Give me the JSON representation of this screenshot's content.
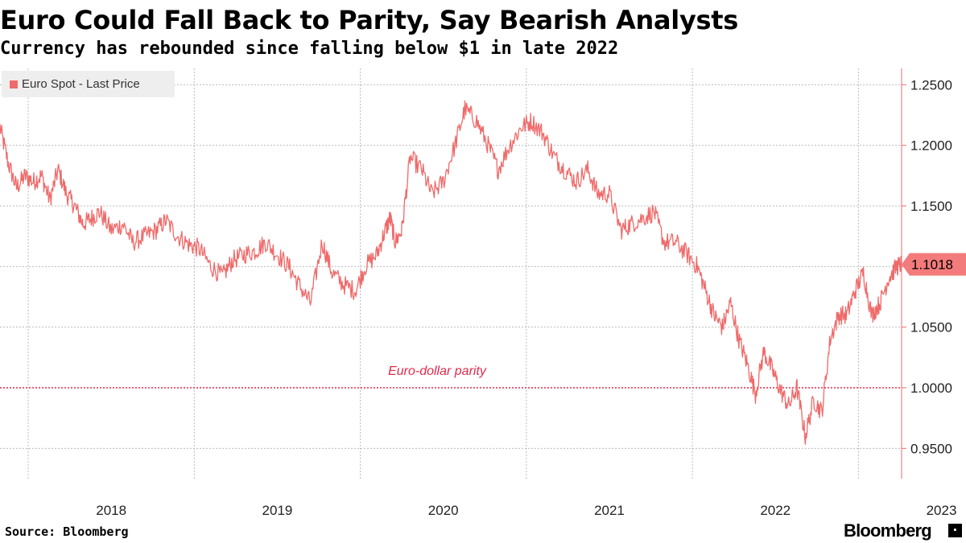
{
  "title": "Euro Could Fall Back to Parity, Say Bearish Analysts",
  "subtitle": "Currency has rebounded since falling below $1 in late 2022",
  "source": "Source: Bloomberg",
  "brand": "Bloomberg",
  "brand_mark": "▪",
  "colors": {
    "line": "#ef6a6a",
    "parity": "#e0294a",
    "axis": "#ef6a6a",
    "grid": "#bbbbbb"
  },
  "chart_data": {
    "type": "line",
    "title": "Euro Could Fall Back to Parity, Say Bearish Analysts",
    "subtitle": "Currency has rebounded since falling below $1 in late 2022",
    "xlabel": "",
    "ylabel": "",
    "ylim": [
      0.925,
      1.2635
    ],
    "xlim": [
      2017.83,
      2023.26
    ],
    "y_ticks": [
      0.95,
      1.0,
      1.05,
      1.1,
      1.15,
      1.2,
      1.25
    ],
    "y_tick_labels": [
      "0.9500",
      "1.0000",
      "1.0500",
      "1.1000",
      "1.1500",
      "1.2000",
      "1.2500"
    ],
    "x_ticks": [
      2018,
      2019,
      2020,
      2021,
      2022,
      2023
    ],
    "x_tick_labels": [
      "2018",
      "2019",
      "2020",
      "2021",
      "2022",
      "2023"
    ],
    "grid": true,
    "legend": "top-left",
    "series": [
      {
        "name": "Euro Spot - Last Price",
        "last_value_label": "1.1018",
        "x": [
          2017.83,
          2017.88,
          2017.93,
          2017.98,
          2018.03,
          2018.08,
          2018.13,
          2018.18,
          2018.23,
          2018.28,
          2018.33,
          2018.38,
          2018.43,
          2018.5,
          2018.57,
          2018.63,
          2018.7,
          2018.77,
          2018.83,
          2018.9,
          2018.97,
          2019.03,
          2019.1,
          2019.17,
          2019.23,
          2019.3,
          2019.37,
          2019.43,
          2019.5,
          2019.57,
          2019.63,
          2019.7,
          2019.77,
          2019.83,
          2019.9,
          2019.97,
          2020.03,
          2020.1,
          2020.15,
          2020.18,
          2020.21,
          2020.25,
          2020.3,
          2020.37,
          2020.43,
          2020.5,
          2020.57,
          2020.63,
          2020.7,
          2020.77,
          2020.83,
          2020.9,
          2020.97,
          2021.03,
          2021.1,
          2021.17,
          2021.23,
          2021.3,
          2021.37,
          2021.43,
          2021.5,
          2021.57,
          2021.63,
          2021.7,
          2021.77,
          2021.83,
          2021.9,
          2021.97,
          2022.03,
          2022.08,
          2022.13,
          2022.18,
          2022.23,
          2022.28,
          2022.33,
          2022.38,
          2022.43,
          2022.48,
          2022.53,
          2022.58,
          2022.63,
          2022.68,
          2022.73,
          2022.78,
          2022.83,
          2022.88,
          2022.93,
          2022.98,
          2023.03,
          2023.08,
          2023.13,
          2023.18,
          2023.23,
          2023.26
        ],
        "values": [
          1.215,
          1.185,
          1.165,
          1.175,
          1.17,
          1.175,
          1.155,
          1.18,
          1.16,
          1.15,
          1.135,
          1.14,
          1.145,
          1.13,
          1.135,
          1.12,
          1.125,
          1.13,
          1.138,
          1.125,
          1.118,
          1.115,
          1.1,
          1.092,
          1.105,
          1.11,
          1.113,
          1.12,
          1.11,
          1.1,
          1.085,
          1.07,
          1.12,
          1.095,
          1.085,
          1.08,
          1.1,
          1.11,
          1.13,
          1.14,
          1.12,
          1.13,
          1.19,
          1.18,
          1.16,
          1.17,
          1.2,
          1.23,
          1.22,
          1.2,
          1.18,
          1.2,
          1.215,
          1.22,
          1.21,
          1.19,
          1.18,
          1.17,
          1.18,
          1.16,
          1.16,
          1.13,
          1.135,
          1.14,
          1.145,
          1.12,
          1.12,
          1.11,
          1.1,
          1.08,
          1.06,
          1.05,
          1.07,
          1.04,
          1.02,
          0.995,
          1.03,
          1.015,
          0.998,
          0.985,
          1.0,
          0.96,
          0.99,
          0.98,
          1.04,
          1.06,
          1.06,
          1.08,
          1.095,
          1.06,
          1.07,
          1.09,
          1.1,
          1.1018
        ]
      }
    ],
    "annotations": [
      {
        "type": "hline",
        "y": 1.0,
        "label": "Euro-dollar parity"
      }
    ]
  }
}
